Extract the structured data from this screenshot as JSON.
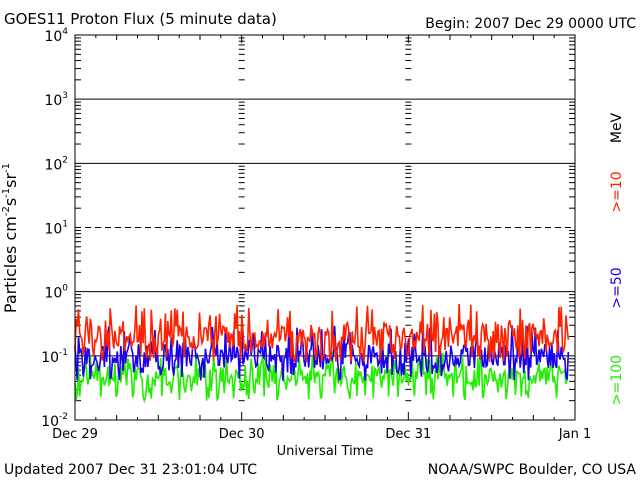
{
  "header": {
    "title": "GOES11 Proton Flux (5 minute data)",
    "begin": "Begin: 2007 Dec 29 0000 UTC"
  },
  "footer": {
    "updated": "Updated 2007 Dec 31 23:01:04 UTC",
    "credit": "NOAA/SWPC Boulder, CO USA"
  },
  "colors": {
    "ge10": "#ff2200",
    "ge50": "#1a00ee",
    "ge100": "#22ee00",
    "axis": "#000000"
  },
  "chart_data": {
    "type": "line",
    "title": "GOES11 Proton Flux (5 minute data)",
    "xlabel": "Universal Time",
    "ylabel": "Particles cm⁻²s⁻¹sr⁻¹",
    "yscale": "log",
    "ylim": [
      0.01,
      10000
    ],
    "yticks": [
      {
        "exp": -2,
        "base": "10",
        "sup": "-2"
      },
      {
        "exp": -1,
        "base": "10",
        "sup": "-1"
      },
      {
        "exp": 0,
        "base": "10",
        "sup": "0"
      },
      {
        "exp": 1,
        "base": "10",
        "sup": "1"
      },
      {
        "exp": 2,
        "base": "10",
        "sup": "2"
      },
      {
        "exp": 3,
        "base": "10",
        "sup": "3"
      },
      {
        "exp": 4,
        "base": "10",
        "sup": "4"
      }
    ],
    "xlim_days": [
      0,
      3
    ],
    "xticks": [
      {
        "day": 0,
        "label": "Dec 29"
      },
      {
        "day": 1,
        "label": "Dec 30"
      },
      {
        "day": 2,
        "label": "Dec 31"
      },
      {
        "day": 3,
        "label": "Jan 1"
      }
    ],
    "data_end_day": 2.96,
    "unit": "MeV",
    "series": [
      {
        "name": ">=10",
        "color_key": "ge10",
        "median": 0.2,
        "min": 0.08,
        "max": 0.65
      },
      {
        "name": ">=50",
        "color_key": "ge50",
        "median": 0.1,
        "min": 0.04,
        "max": 0.3
      },
      {
        "name": ">=100",
        "color_key": "ge100",
        "median": 0.05,
        "min": 0.02,
        "max": 0.12
      }
    ]
  }
}
